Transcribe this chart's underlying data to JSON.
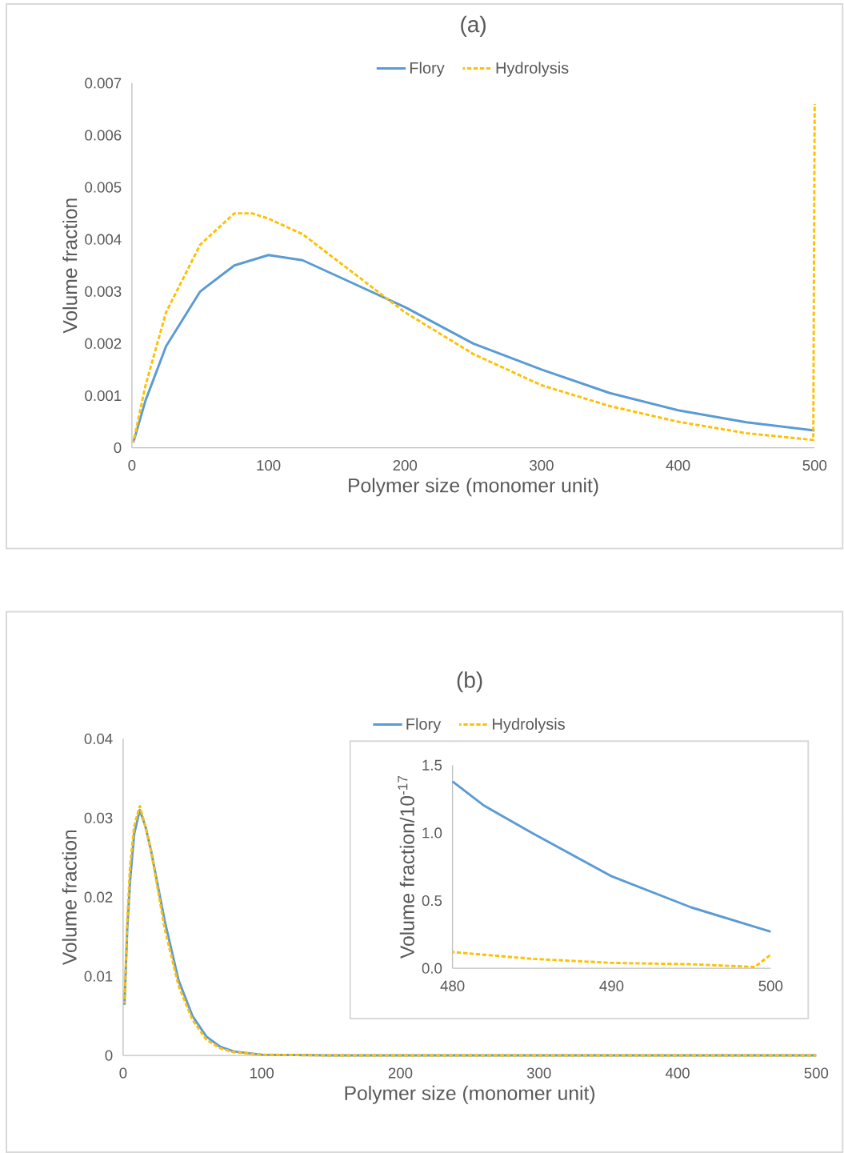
{
  "chart_data": [
    {
      "type": "line",
      "title": "(a)",
      "xlabel": "Polymer size (monomer unit)",
      "ylabel": "Volume fraction",
      "xlim": [
        0,
        500
      ],
      "ylim": [
        0,
        0.007
      ],
      "xticks": [
        0,
        100,
        200,
        300,
        400,
        500
      ],
      "yticks": [
        0,
        0.001,
        0.002,
        0.003,
        0.004,
        0.005,
        0.006,
        0.007
      ],
      "legend": "top",
      "series": [
        {
          "name": "Flory",
          "color": "#5b9bd5",
          "line_style": "solid",
          "x": [
            1,
            10,
            25,
            50,
            75,
            100,
            125,
            150,
            200,
            250,
            300,
            350,
            400,
            450,
            500
          ],
          "values": [
            0.0001,
            0.00091,
            0.00195,
            0.003,
            0.0035,
            0.0037,
            0.0036,
            0.0033,
            0.0027,
            0.002,
            0.0015,
            0.00105,
            0.00072,
            0.00049,
            0.00033
          ]
        },
        {
          "name": "Hydrolysis",
          "color": "#ffc000",
          "line_style": "dashed",
          "x": [
            1,
            10,
            25,
            50,
            75,
            88,
            100,
            125,
            150,
            175,
            200,
            250,
            300,
            350,
            400,
            450,
            499,
            500
          ],
          "values": [
            0.0001,
            0.0012,
            0.0026,
            0.0039,
            0.0045,
            0.0045,
            0.0044,
            0.0041,
            0.0036,
            0.0031,
            0.0026,
            0.0018,
            0.0012,
            0.0008,
            0.0005,
            0.00028,
            0.00015,
            0.0066
          ]
        }
      ]
    },
    {
      "type": "line",
      "title": "(b)",
      "xlabel": "Polymer size (monomer unit)",
      "ylabel": "Volume fraction",
      "xlim": [
        0,
        500
      ],
      "ylim": [
        0,
        0.04
      ],
      "xticks": [
        0,
        100,
        200,
        300,
        400,
        500
      ],
      "yticks": [
        0,
        0.01,
        0.02,
        0.03,
        0.04
      ],
      "legend": "top",
      "series": [
        {
          "name": "Flory",
          "color": "#5b9bd5",
          "line_style": "solid",
          "x": [
            1,
            3,
            5,
            8,
            12,
            16,
            20,
            30,
            40,
            50,
            60,
            70,
            80,
            100,
            150,
            500
          ],
          "values": [
            0.0064,
            0.016,
            0.022,
            0.028,
            0.031,
            0.029,
            0.026,
            0.017,
            0.0095,
            0.005,
            0.0024,
            0.0011,
            0.0005,
            0.0001,
            0,
            0
          ]
        },
        {
          "name": "Hydrolysis",
          "color": "#ffc000",
          "line_style": "dashed",
          "x": [
            1,
            3,
            5,
            8,
            12,
            16,
            20,
            30,
            40,
            50,
            60,
            70,
            80,
            100,
            150,
            500
          ],
          "values": [
            0.0066,
            0.017,
            0.024,
            0.029,
            0.0315,
            0.029,
            0.026,
            0.016,
            0.0088,
            0.0045,
            0.002,
            0.0009,
            0.0004,
            0.0001,
            0,
            0
          ]
        }
      ]
    },
    {
      "type": "line",
      "ylabel": "Volume fraction/10$^{-17}$",
      "xlim": [
        480,
        500
      ],
      "ylim": [
        0,
        1.5
      ],
      "xticks": [
        480,
        490,
        500
      ],
      "yticks": [
        {
          "value": 0,
          "label": "0.0"
        },
        {
          "value": 0.5,
          "label": "0.5"
        },
        {
          "value": 1,
          "label": "1.0"
        },
        {
          "value": 1.5,
          "label": "1.5"
        }
      ],
      "series": [
        {
          "color": "#5b9bd5",
          "line_style": "solid",
          "x": [
            480,
            482,
            485,
            490,
            495,
            500
          ],
          "values": [
            1.38,
            1.2,
            1.0,
            0.68,
            0.45,
            0.27
          ]
        },
        {
          "color": "#ffc000",
          "line_style": "dashed",
          "x": [
            480,
            485,
            490,
            495,
            499,
            500
          ],
          "values": [
            0.12,
            0.07,
            0.04,
            0.03,
            0.01,
            0.1
          ]
        }
      ]
    }
  ]
}
